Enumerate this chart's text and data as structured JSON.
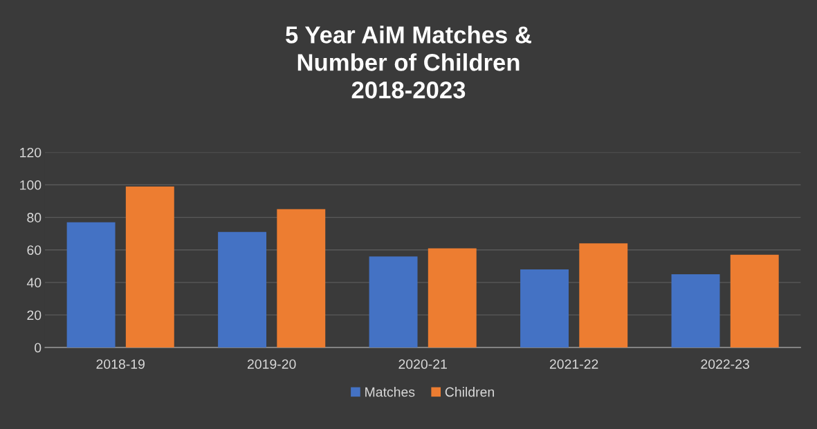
{
  "chart_data": {
    "type": "bar",
    "title": "5 Year AiM Matches &\nNumber of Children\n2018-2023",
    "categories": [
      "2018-19",
      "2019-20",
      "2020-21",
      "2021-22",
      "2022-23"
    ],
    "series": [
      {
        "name": "Matches",
        "color": "#4472c4",
        "values": [
          77,
          71,
          56,
          48,
          45
        ]
      },
      {
        "name": "Children",
        "color": "#ed7d31",
        "values": [
          99,
          85,
          61,
          64,
          57
        ]
      }
    ],
    "ylim": [
      0,
      120
    ],
    "yticks": [
      0,
      20,
      40,
      60,
      80,
      100,
      120
    ],
    "grid": "y",
    "legend": "bottom"
  }
}
